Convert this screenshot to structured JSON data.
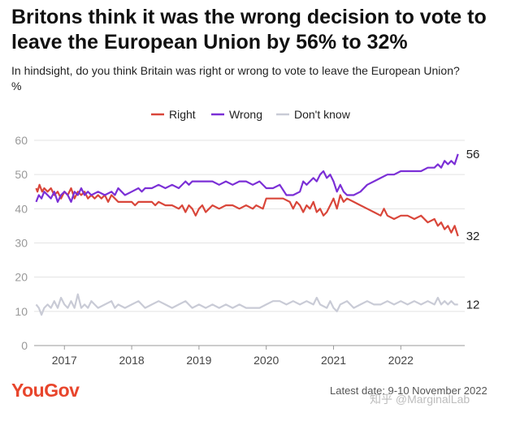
{
  "header": {
    "title": "Britons think it was the wrong decision to vote to leave the European Union by 56% to 32%",
    "subtitle": "In hindsight, do you think Britain was right or wrong to vote to leave the European Union?",
    "unit": "%"
  },
  "footer": {
    "logo": "YouGov",
    "source": "Latest date: 9-10 November 2022",
    "watermark": "知乎 @MarginalLab"
  },
  "chart_data": {
    "type": "line",
    "legend_position": "top-center",
    "grid": true,
    "ylim": [
      0,
      60
    ],
    "yticks": [
      "0",
      "10",
      "20",
      "30",
      "40",
      "50",
      "60"
    ],
    "xlim": [
      2016.55,
      2022.95
    ],
    "xticks": [
      {
        "value": 2017,
        "label": "2017"
      },
      {
        "value": 2018,
        "label": "2018"
      },
      {
        "value": 2019,
        "label": "2019"
      },
      {
        "value": 2020,
        "label": "2020"
      },
      {
        "value": 2021,
        "label": "2021"
      },
      {
        "value": 2022,
        "label": "2022"
      }
    ],
    "series": [
      {
        "name": "Right",
        "color": "#d9463a",
        "end_label": "32",
        "points": [
          [
            2016.58,
            46
          ],
          [
            2016.6,
            45
          ],
          [
            2016.63,
            47
          ],
          [
            2016.67,
            45
          ],
          [
            2016.7,
            46
          ],
          [
            2016.75,
            45
          ],
          [
            2016.8,
            46
          ],
          [
            2016.85,
            44
          ],
          [
            2016.9,
            45
          ],
          [
            2016.95,
            43
          ],
          [
            2017.0,
            45
          ],
          [
            2017.05,
            44
          ],
          [
            2017.1,
            46
          ],
          [
            2017.15,
            43
          ],
          [
            2017.2,
            45
          ],
          [
            2017.25,
            44
          ],
          [
            2017.3,
            45
          ],
          [
            2017.35,
            43
          ],
          [
            2017.4,
            44
          ],
          [
            2017.45,
            43
          ],
          [
            2017.5,
            44
          ],
          [
            2017.55,
            43
          ],
          [
            2017.6,
            44
          ],
          [
            2017.65,
            42
          ],
          [
            2017.7,
            44
          ],
          [
            2017.75,
            43
          ],
          [
            2017.8,
            42
          ],
          [
            2017.9,
            42
          ],
          [
            2018.0,
            42
          ],
          [
            2018.05,
            41
          ],
          [
            2018.1,
            42
          ],
          [
            2018.2,
            42
          ],
          [
            2018.3,
            42
          ],
          [
            2018.35,
            41
          ],
          [
            2018.4,
            42
          ],
          [
            2018.5,
            41
          ],
          [
            2018.6,
            41
          ],
          [
            2018.7,
            40
          ],
          [
            2018.75,
            41
          ],
          [
            2018.8,
            39
          ],
          [
            2018.85,
            41
          ],
          [
            2018.9,
            40
          ],
          [
            2018.95,
            38
          ],
          [
            2019.0,
            40
          ],
          [
            2019.05,
            41
          ],
          [
            2019.1,
            39
          ],
          [
            2019.15,
            40
          ],
          [
            2019.2,
            41
          ],
          [
            2019.3,
            40
          ],
          [
            2019.4,
            41
          ],
          [
            2019.5,
            41
          ],
          [
            2019.6,
            40
          ],
          [
            2019.7,
            41
          ],
          [
            2019.8,
            40
          ],
          [
            2019.85,
            41
          ],
          [
            2019.95,
            40
          ],
          [
            2020.0,
            43
          ],
          [
            2020.1,
            43
          ],
          [
            2020.25,
            43
          ],
          [
            2020.35,
            42
          ],
          [
            2020.4,
            40
          ],
          [
            2020.45,
            42
          ],
          [
            2020.5,
            41
          ],
          [
            2020.55,
            39
          ],
          [
            2020.6,
            41
          ],
          [
            2020.65,
            40
          ],
          [
            2020.7,
            42
          ],
          [
            2020.75,
            39
          ],
          [
            2020.8,
            40
          ],
          [
            2020.85,
            38
          ],
          [
            2020.9,
            39
          ],
          [
            2020.95,
            41
          ],
          [
            2021.0,
            43
          ],
          [
            2021.05,
            40
          ],
          [
            2021.1,
            44
          ],
          [
            2021.15,
            42
          ],
          [
            2021.2,
            43
          ],
          [
            2021.3,
            42
          ],
          [
            2021.4,
            41
          ],
          [
            2021.5,
            40
          ],
          [
            2021.6,
            39
          ],
          [
            2021.7,
            38
          ],
          [
            2021.75,
            40
          ],
          [
            2021.8,
            38
          ],
          [
            2021.9,
            37
          ],
          [
            2022.0,
            38
          ],
          [
            2022.1,
            38
          ],
          [
            2022.2,
            37
          ],
          [
            2022.3,
            38
          ],
          [
            2022.4,
            36
          ],
          [
            2022.5,
            37
          ],
          [
            2022.55,
            35
          ],
          [
            2022.6,
            36
          ],
          [
            2022.65,
            34
          ],
          [
            2022.7,
            35
          ],
          [
            2022.75,
            33
          ],
          [
            2022.8,
            35
          ],
          [
            2022.85,
            32
          ]
        ]
      },
      {
        "name": "Wrong",
        "color": "#7b2fd6",
        "end_label": "56",
        "points": [
          [
            2016.58,
            42
          ],
          [
            2016.62,
            44
          ],
          [
            2016.66,
            43
          ],
          [
            2016.7,
            45
          ],
          [
            2016.75,
            44
          ],
          [
            2016.8,
            43
          ],
          [
            2016.85,
            45
          ],
          [
            2016.9,
            42
          ],
          [
            2016.95,
            44
          ],
          [
            2017.0,
            45
          ],
          [
            2017.05,
            44
          ],
          [
            2017.1,
            42
          ],
          [
            2017.15,
            45
          ],
          [
            2017.2,
            44
          ],
          [
            2017.25,
            46
          ],
          [
            2017.3,
            44
          ],
          [
            2017.35,
            45
          ],
          [
            2017.4,
            44
          ],
          [
            2017.5,
            45
          ],
          [
            2017.6,
            44
          ],
          [
            2017.7,
            45
          ],
          [
            2017.75,
            44
          ],
          [
            2017.8,
            46
          ],
          [
            2017.85,
            45
          ],
          [
            2017.9,
            44
          ],
          [
            2018.0,
            45
          ],
          [
            2018.1,
            46
          ],
          [
            2018.15,
            45
          ],
          [
            2018.2,
            46
          ],
          [
            2018.3,
            46
          ],
          [
            2018.4,
            47
          ],
          [
            2018.5,
            46
          ],
          [
            2018.6,
            47
          ],
          [
            2018.7,
            46
          ],
          [
            2018.8,
            48
          ],
          [
            2018.85,
            47
          ],
          [
            2018.9,
            48
          ],
          [
            2019.0,
            48
          ],
          [
            2019.1,
            48
          ],
          [
            2019.2,
            48
          ],
          [
            2019.3,
            47
          ],
          [
            2019.4,
            48
          ],
          [
            2019.5,
            47
          ],
          [
            2019.6,
            48
          ],
          [
            2019.7,
            48
          ],
          [
            2019.8,
            47
          ],
          [
            2019.9,
            48
          ],
          [
            2020.0,
            46
          ],
          [
            2020.1,
            46
          ],
          [
            2020.2,
            47
          ],
          [
            2020.3,
            44
          ],
          [
            2020.4,
            44
          ],
          [
            2020.5,
            45
          ],
          [
            2020.55,
            48
          ],
          [
            2020.6,
            47
          ],
          [
            2020.65,
            48
          ],
          [
            2020.7,
            49
          ],
          [
            2020.75,
            48
          ],
          [
            2020.8,
            50
          ],
          [
            2020.85,
            51
          ],
          [
            2020.9,
            49
          ],
          [
            2020.95,
            50
          ],
          [
            2021.0,
            48
          ],
          [
            2021.05,
            45
          ],
          [
            2021.1,
            47
          ],
          [
            2021.15,
            45
          ],
          [
            2021.2,
            44
          ],
          [
            2021.3,
            44
          ],
          [
            2021.4,
            45
          ],
          [
            2021.5,
            47
          ],
          [
            2021.6,
            48
          ],
          [
            2021.7,
            49
          ],
          [
            2021.8,
            50
          ],
          [
            2021.9,
            50
          ],
          [
            2022.0,
            51
          ],
          [
            2022.1,
            51
          ],
          [
            2022.2,
            51
          ],
          [
            2022.3,
            51
          ],
          [
            2022.4,
            52
          ],
          [
            2022.5,
            52
          ],
          [
            2022.55,
            53
          ],
          [
            2022.6,
            52
          ],
          [
            2022.65,
            54
          ],
          [
            2022.7,
            53
          ],
          [
            2022.75,
            54
          ],
          [
            2022.8,
            53
          ],
          [
            2022.85,
            56
          ]
        ]
      },
      {
        "name": "Don't know",
        "color": "#c9cbd6",
        "end_label": "12",
        "points": [
          [
            2016.58,
            12
          ],
          [
            2016.62,
            11
          ],
          [
            2016.66,
            9
          ],
          [
            2016.7,
            11
          ],
          [
            2016.75,
            12
          ],
          [
            2016.8,
            11
          ],
          [
            2016.85,
            13
          ],
          [
            2016.9,
            11
          ],
          [
            2016.95,
            14
          ],
          [
            2017.0,
            12
          ],
          [
            2017.05,
            11
          ],
          [
            2017.1,
            13
          ],
          [
            2017.15,
            11
          ],
          [
            2017.2,
            15
          ],
          [
            2017.25,
            11
          ],
          [
            2017.3,
            12
          ],
          [
            2017.35,
            11
          ],
          [
            2017.4,
            13
          ],
          [
            2017.45,
            12
          ],
          [
            2017.5,
            11
          ],
          [
            2017.6,
            12
          ],
          [
            2017.7,
            13
          ],
          [
            2017.75,
            11
          ],
          [
            2017.8,
            12
          ],
          [
            2017.9,
            11
          ],
          [
            2018.0,
            12
          ],
          [
            2018.1,
            13
          ],
          [
            2018.15,
            12
          ],
          [
            2018.2,
            11
          ],
          [
            2018.3,
            12
          ],
          [
            2018.4,
            13
          ],
          [
            2018.5,
            12
          ],
          [
            2018.6,
            11
          ],
          [
            2018.7,
            12
          ],
          [
            2018.8,
            13
          ],
          [
            2018.9,
            11
          ],
          [
            2019.0,
            12
          ],
          [
            2019.1,
            11
          ],
          [
            2019.2,
            12
          ],
          [
            2019.3,
            11
          ],
          [
            2019.4,
            12
          ],
          [
            2019.5,
            11
          ],
          [
            2019.6,
            12
          ],
          [
            2019.7,
            11
          ],
          [
            2019.8,
            11
          ],
          [
            2019.9,
            11
          ],
          [
            2020.0,
            12
          ],
          [
            2020.1,
            13
          ],
          [
            2020.2,
            13
          ],
          [
            2020.3,
            12
          ],
          [
            2020.4,
            13
          ],
          [
            2020.5,
            12
          ],
          [
            2020.6,
            13
          ],
          [
            2020.7,
            12
          ],
          [
            2020.75,
            14
          ],
          [
            2020.8,
            12
          ],
          [
            2020.9,
            11
          ],
          [
            2020.95,
            13
          ],
          [
            2021.0,
            11
          ],
          [
            2021.05,
            10
          ],
          [
            2021.1,
            12
          ],
          [
            2021.2,
            13
          ],
          [
            2021.3,
            11
          ],
          [
            2021.4,
            12
          ],
          [
            2021.5,
            13
          ],
          [
            2021.6,
            12
          ],
          [
            2021.7,
            12
          ],
          [
            2021.8,
            13
          ],
          [
            2021.9,
            12
          ],
          [
            2022.0,
            13
          ],
          [
            2022.1,
            12
          ],
          [
            2022.2,
            13
          ],
          [
            2022.3,
            12
          ],
          [
            2022.4,
            13
          ],
          [
            2022.5,
            12
          ],
          [
            2022.55,
            14
          ],
          [
            2022.6,
            12
          ],
          [
            2022.65,
            13
          ],
          [
            2022.7,
            12
          ],
          [
            2022.75,
            13
          ],
          [
            2022.8,
            12
          ],
          [
            2022.85,
            12
          ]
        ]
      }
    ]
  }
}
